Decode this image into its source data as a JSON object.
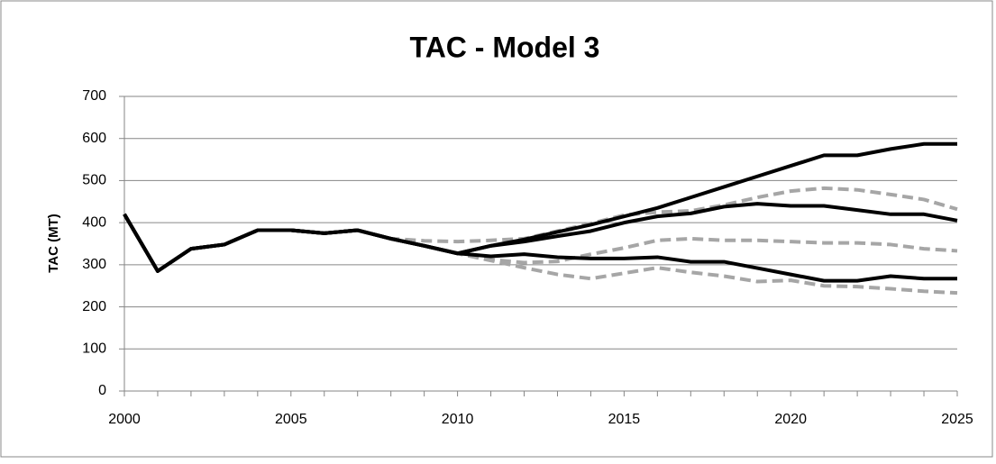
{
  "chart_data": {
    "type": "line",
    "title": "TAC - Model 3",
    "y_label": "TAC (MT)",
    "x": [
      2000,
      2001,
      2002,
      2003,
      2004,
      2005,
      2006,
      2007,
      2008,
      2009,
      2010,
      2011,
      2012,
      2013,
      2014,
      2015,
      2016,
      2017,
      2018,
      2019,
      2020,
      2021,
      2022,
      2023,
      2024,
      2025
    ],
    "xlim": [
      2000,
      2025
    ],
    "xticks": [
      2000,
      2005,
      2010,
      2015,
      2020,
      2025
    ],
    "ylim": [
      0,
      700
    ],
    "yticks": [
      0,
      100,
      200,
      300,
      400,
      500,
      600,
      700
    ],
    "grid": true,
    "series": [
      {
        "color": "#000000",
        "dash": false,
        "values": [
          420,
          285,
          338,
          348,
          382,
          382,
          375,
          382,
          362,
          345,
          327,
          345,
          360,
          378,
          395,
          415,
          435,
          460,
          485,
          510,
          535,
          560,
          560,
          575,
          587,
          587
        ]
      },
      {
        "color": "#000000",
        "dash": false,
        "values": [
          420,
          285,
          338,
          348,
          382,
          382,
          375,
          382,
          362,
          345,
          327,
          345,
          355,
          368,
          380,
          400,
          415,
          422,
          438,
          445,
          440,
          440,
          430,
          420,
          420,
          405
        ]
      },
      {
        "color": "#000000",
        "dash": false,
        "values": [
          420,
          285,
          338,
          348,
          382,
          382,
          375,
          382,
          362,
          345,
          327,
          320,
          325,
          318,
          315,
          315,
          318,
          307,
          307,
          292,
          277,
          262,
          262,
          273,
          267,
          267
        ]
      },
      {
        "color": "#a6a6a6",
        "dash": true,
        "values": [
          420,
          285,
          338,
          348,
          382,
          382,
          375,
          382,
          362,
          357,
          355,
          358,
          362,
          380,
          398,
          418,
          425,
          428,
          442,
          460,
          475,
          482,
          478,
          467,
          455,
          432
        ]
      },
      {
        "color": "#a6a6a6",
        "dash": true,
        "values": [
          420,
          285,
          338,
          348,
          382,
          382,
          375,
          382,
          362,
          345,
          327,
          312,
          305,
          308,
          325,
          340,
          358,
          362,
          358,
          358,
          355,
          352,
          352,
          348,
          338,
          333
        ]
      },
      {
        "color": "#a6a6a6",
        "dash": true,
        "values": [
          420,
          285,
          338,
          348,
          382,
          382,
          375,
          382,
          362,
          345,
          327,
          310,
          293,
          277,
          267,
          280,
          293,
          282,
          273,
          260,
          263,
          250,
          248,
          243,
          237,
          233
        ]
      }
    ]
  }
}
